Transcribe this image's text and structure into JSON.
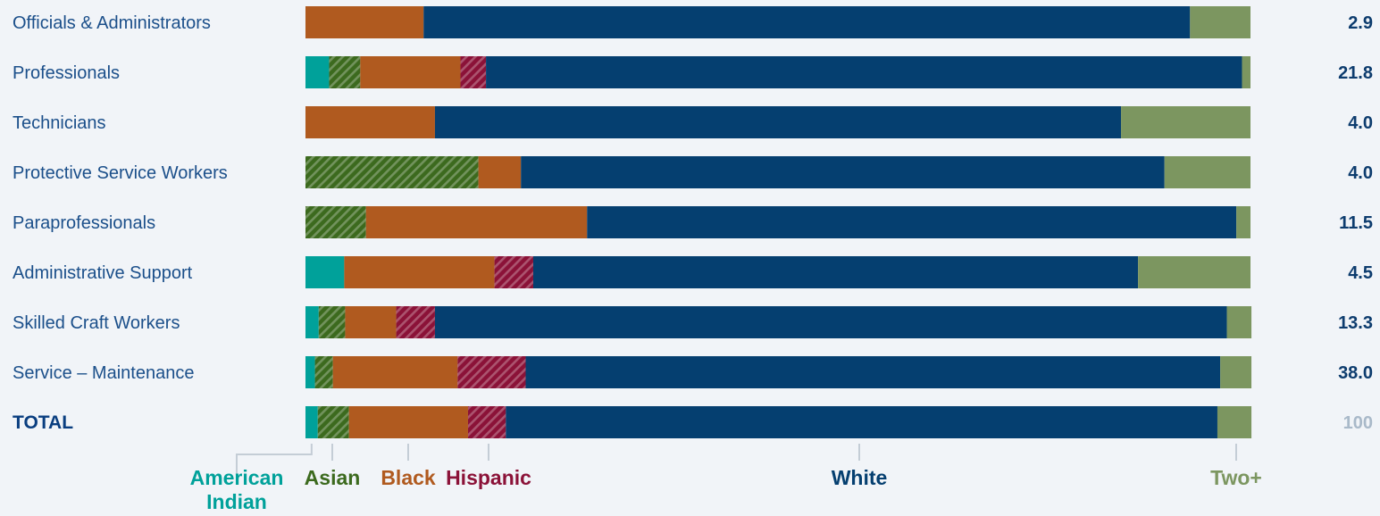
{
  "chart_data": {
    "type": "bar",
    "orientation": "horizontal",
    "stacked": true,
    "normalized": true,
    "xlim": [
      0,
      100
    ],
    "categories": [
      "Officials & Administrators",
      "Professionals",
      "Technicians",
      "Protective Service Workers",
      "Paraprofessionals",
      "Administrative Support",
      "Skilled Craft Workers",
      "Service –  Maintenance",
      "TOTAL"
    ],
    "row_totals": [
      "2.9",
      "21.8",
      "4.0",
      "4.0",
      "11.5",
      "4.5",
      "13.3",
      "38.0",
      "100"
    ],
    "series": [
      {
        "name": "American Indian",
        "color": "#00a19a",
        "pattern": "solid",
        "values": [
          0,
          2.5,
          0,
          0,
          0,
          4.1,
          1.4,
          1.0,
          1.3
        ]
      },
      {
        "name": "Asian",
        "color": "#3c6a1e",
        "pattern": "hatch",
        "values": [
          0,
          3.3,
          0,
          18.3,
          6.4,
          0,
          2.8,
          1.9,
          3.3
        ]
      },
      {
        "name": "Black",
        "color": "#b05a1f",
        "pattern": "solid",
        "values": [
          12.5,
          10.6,
          13.7,
          4.5,
          23.4,
          15.9,
          5.4,
          13.2,
          12.6
        ]
      },
      {
        "name": "Hispanic",
        "color": "#8b1238",
        "pattern": "hatch",
        "values": [
          0,
          2.7,
          0,
          0,
          0,
          4.1,
          4.1,
          7.2,
          4.0
        ]
      },
      {
        "name": "White",
        "color": "#053f70",
        "pattern": "solid",
        "values": [
          81.1,
          80.0,
          72.6,
          68.1,
          68.7,
          64.0,
          83.8,
          73.5,
          75.3
        ]
      },
      {
        "name": "Two+",
        "color": "#7c9660",
        "pattern": "solid",
        "values": [
          6.4,
          0.9,
          13.7,
          9.1,
          1.5,
          11.9,
          2.6,
          3.3,
          3.6
        ]
      }
    ],
    "legend": {
      "position": "bottom",
      "labels": [
        {
          "text": "American",
          "text2": "Indian",
          "color": "#00a19a",
          "series": 0
        },
        {
          "text": "Asian",
          "color": "#3c6a1e",
          "series": 1
        },
        {
          "text": "Black",
          "color": "#b05a1f",
          "series": 2
        },
        {
          "text": "Hispanic",
          "color": "#8b1238",
          "series": 3
        },
        {
          "text": "White",
          "color": "#053f70",
          "series": 4
        },
        {
          "text": "Two+",
          "color": "#7c9660",
          "series": 5
        }
      ]
    },
    "grid": false
  }
}
